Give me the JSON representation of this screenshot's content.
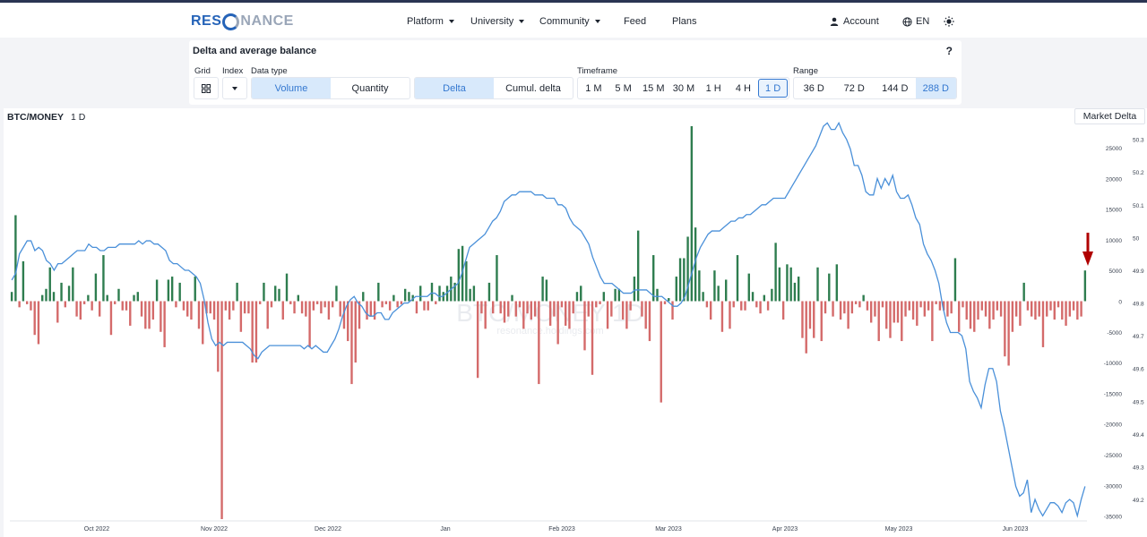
{
  "logo": {
    "part1": "RES",
    "part2": "NANCE"
  },
  "nav": {
    "platform": "Platform",
    "university": "University",
    "community": "Community",
    "feed": "Feed",
    "plans": "Plans",
    "account": "Account",
    "language": "EN"
  },
  "panel": {
    "title": "Delta and average balance",
    "help": "?",
    "labels": {
      "grid": "Grid",
      "index": "Index",
      "data_type": "Data type",
      "timeframe": "Timeframe",
      "range": "Range"
    },
    "data_type": {
      "volume": "Volume",
      "quantity": "Quantity",
      "selected": "Volume"
    },
    "mode": {
      "delta": "Delta",
      "cumul": "Cumul. delta",
      "selected": "Delta"
    },
    "timeframes": [
      "1 M",
      "5 M",
      "15 M",
      "30 M",
      "1 H",
      "4 H",
      "1 D"
    ],
    "timeframe_selected": "1 D",
    "ranges": [
      "36 D",
      "72 D",
      "144 D",
      "288 D"
    ],
    "range_selected": "288 D"
  },
  "chart": {
    "pair": "BTC/MONEY",
    "timeframe": "1 D",
    "indicator_button": "Market Delta",
    "watermark": "BTC/MONEY 1D",
    "watermark_sub": "resonance.holdings.com"
  },
  "chart_data": {
    "type": "bar",
    "x_labels": [
      "Oct 2022",
      "Nov 2022",
      "Dec 2022",
      "Jan",
      "Feb 2023",
      "Mar 2023",
      "Apr 2023",
      "May 2023",
      "Jun 2023"
    ],
    "y_ticks_left": [
      25000,
      20000,
      15000,
      10000,
      5000,
      0,
      -5000,
      -10000,
      -15000,
      -20000,
      -25000,
      -30000,
      -35000
    ],
    "y_ticks_right": [
      "50.3",
      "50.2",
      "50.1",
      "50",
      "49.9",
      "49.8",
      "49.7",
      "49.6",
      "49.5",
      "49.4",
      "49.3",
      "49.2"
    ],
    "ylim_left": [
      -35500,
      28500
    ],
    "ylim_right": [
      49.14,
      50.34
    ],
    "series": [
      {
        "values": [
          1500,
          14000,
          -1000,
          6500,
          -500,
          -1500,
          -5500,
          -7000,
          1000,
          2000,
          5500,
          1500,
          -3500,
          3000,
          -1000,
          2500,
          5500,
          -2500,
          -3000,
          -500,
          1000,
          -1500,
          4500,
          -2500,
          7500,
          1000,
          -5500,
          -500,
          2000,
          -1500,
          -1500,
          -4000,
          1000,
          1500,
          -2500,
          -4500,
          -4500,
          -3000,
          3500,
          -5000,
          -7500,
          3500,
          4000,
          -1000,
          3000,
          -1500,
          -2500,
          -3000,
          4000,
          -4500,
          -7000,
          -2000,
          -2000,
          -3000,
          -11500,
          -35500,
          -1500,
          -3000,
          -1500,
          3000,
          -5000,
          -2000,
          -2000,
          -10000,
          -10000,
          -500,
          3000,
          -4500,
          -1000,
          2500,
          2000,
          -3000,
          4500,
          -500,
          -2000,
          1000,
          -2000,
          -2500,
          -7500,
          -1500,
          -500,
          -2000,
          -1000,
          -3000,
          -1000,
          2500,
          -2500,
          -4500,
          -6500,
          -13500,
          -10000,
          -4500,
          1500,
          -3000,
          -2500,
          -3000,
          3000,
          -1000,
          -500,
          -1500,
          1000,
          -1000,
          -500,
          2000,
          1500,
          1000,
          -2000,
          2500,
          -1500,
          -1500,
          3000,
          -500,
          2500,
          1500,
          2500,
          4000,
          3000,
          8500,
          9000,
          6500,
          2000,
          2500,
          -12500,
          -2000,
          -4500,
          3000,
          -2000,
          7500,
          -2000,
          -3500,
          -2500,
          1000,
          -2500,
          -1000,
          -4500,
          -2000,
          -3000,
          -2500,
          -13500,
          4000,
          3500,
          -4000,
          -2500,
          -7000,
          -1000,
          -4000,
          -4500,
          -2000,
          1500,
          2500,
          -8000,
          -2500,
          -12000,
          -1000,
          -500,
          1500,
          -4500,
          -2500,
          2000,
          2000,
          -3000,
          -4500,
          -1500,
          4000,
          11500,
          -2500,
          -4500,
          -6500,
          7500,
          2000,
          -16500,
          -500,
          500,
          -3000,
          4000,
          7000,
          7000,
          10500,
          28500,
          12000,
          5000,
          1500,
          -1000,
          -3000,
          5000,
          2500,
          -5000,
          3500,
          -4500,
          -1000,
          7500,
          -1500,
          -1500,
          4500,
          1500,
          -1000,
          -2000,
          1000,
          -1500,
          2000,
          9500,
          5500,
          -3000,
          6000,
          5500,
          3000,
          4000,
          -6000,
          -8500,
          -4500,
          -6000,
          5500,
          -6500,
          -2000,
          4500,
          -2500,
          6000,
          -3000,
          -2000,
          -4500,
          -2000,
          -500,
          -1000,
          1000,
          -1500,
          -3500,
          -2500,
          -6500,
          -1000,
          -4500,
          -6000,
          -3500,
          -3500,
          -6500,
          -2500,
          -1500,
          -3000,
          -4000,
          -1000,
          -2500,
          -1500,
          -6500,
          -500,
          -1500,
          -1500,
          -2500,
          -2000,
          7000,
          -5000,
          -1000,
          -3000,
          -4500,
          -5000,
          -3000,
          -1500,
          -2500,
          -4500,
          -3000,
          -1500,
          -2500,
          -9000,
          -10500,
          -5000,
          -2500,
          -4000,
          3000,
          -1500,
          -2500,
          -3000,
          -2500,
          -7500,
          -2500,
          -1500,
          -3000,
          -1000,
          -3000,
          -4000,
          -2500,
          -1500,
          -3000,
          -2500,
          5000
        ]
      },
      {
        "values": [
          49.87,
          49.89,
          49.95,
          49.97,
          49.99,
          49.99,
          49.96,
          49.97,
          49.96,
          49.93,
          49.92,
          49.9,
          49.92,
          49.92,
          49.93,
          49.94,
          49.95,
          49.96,
          49.96,
          49.96,
          49.98,
          49.97,
          49.97,
          49.96,
          49.96,
          49.97,
          49.97,
          49.97,
          49.98,
          49.98,
          49.98,
          49.98,
          49.98,
          49.99,
          49.98,
          49.99,
          49.99,
          49.98,
          49.98,
          49.97,
          49.96,
          49.93,
          49.92,
          49.92,
          49.91,
          49.9,
          49.9,
          49.89,
          49.88,
          49.86,
          49.81,
          49.74,
          49.69,
          49.67,
          49.68,
          49.67,
          49.68,
          49.68,
          49.68,
          49.68,
          49.68,
          49.67,
          49.66,
          49.64,
          49.63,
          49.65,
          49.66,
          49.67,
          49.67,
          49.67,
          49.67,
          49.67,
          49.67,
          49.67,
          49.67,
          49.67,
          49.66,
          49.67,
          49.66,
          49.67,
          49.66,
          49.65,
          49.65,
          49.67,
          49.69,
          49.72,
          49.76,
          49.79,
          49.81,
          49.82,
          49.8,
          49.79,
          49.77,
          49.76,
          49.76,
          49.77,
          49.77,
          49.75,
          49.75,
          49.77,
          49.78,
          49.79,
          49.8,
          49.8,
          49.81,
          49.82,
          49.82,
          49.82,
          49.82,
          49.83,
          49.83,
          49.82,
          49.82,
          49.83,
          49.84,
          49.85,
          49.86,
          49.89,
          49.93,
          49.97,
          49.98,
          49.99,
          50,
          50.01,
          50.03,
          50.05,
          50.06,
          50.08,
          50.11,
          50.12,
          50.13,
          50.13,
          50.14,
          50.14,
          50.14,
          50.14,
          50.13,
          50.13,
          50.13,
          50.12,
          50.12,
          50.12,
          50.1,
          50.1,
          50.09,
          50.06,
          50.04,
          50.03,
          50.02,
          50,
          49.98,
          49.94,
          49.91,
          49.88,
          49.86,
          49.86,
          49.86,
          49.85,
          49.84,
          49.83,
          49.83,
          49.83,
          49.84,
          49.84,
          49.84,
          49.84,
          49.83,
          49.82,
          49.82,
          49.82,
          49.81,
          49.8,
          49.79,
          49.79,
          49.8,
          49.82,
          49.86,
          49.9,
          49.94,
          49.97,
          49.99,
          50.01,
          50.02,
          50.02,
          50.02,
          50.03,
          50.04,
          50.05,
          50.05,
          50.06,
          50.06,
          50.07,
          50.07,
          50.08,
          50.09,
          50.1,
          50.1,
          50.11,
          50.12,
          50.12,
          50.12,
          50.12,
          50.14,
          50.16,
          50.18,
          50.2,
          50.22,
          50.24,
          50.26,
          50.28,
          50.31,
          50.34,
          50.35,
          50.33,
          50.33,
          50.35,
          50.32,
          50.3,
          50.27,
          50.22,
          50.22,
          50.19,
          50.14,
          50.13,
          50.13,
          50.18,
          50.15,
          50.18,
          50.16,
          50.19,
          50.14,
          50.12,
          50.12,
          50.13,
          50.1,
          50.06,
          50.04,
          49.98,
          49.95,
          49.93,
          49.9,
          49.86,
          49.79,
          49.74,
          49.71,
          49.71,
          49.71,
          49.7,
          49.66,
          49.56,
          49.53,
          49.51,
          49.48,
          49.55,
          49.6,
          49.6,
          49.56,
          49.47,
          49.42,
          49.36,
          49.3,
          49.24,
          49.21,
          49.22,
          49.26,
          49.16,
          49.2,
          49.17,
          49.15,
          49.17,
          49.19,
          49.19,
          49.18,
          49.16,
          49.19,
          49.2,
          49.19,
          49.15,
          49.2,
          49.24
        ]
      }
    ],
    "colors": {
      "positive": "#2e7d4f",
      "negative": "#d46a6a",
      "line": "#4a90d9",
      "arrow": "#b00000"
    },
    "grid": false
  }
}
